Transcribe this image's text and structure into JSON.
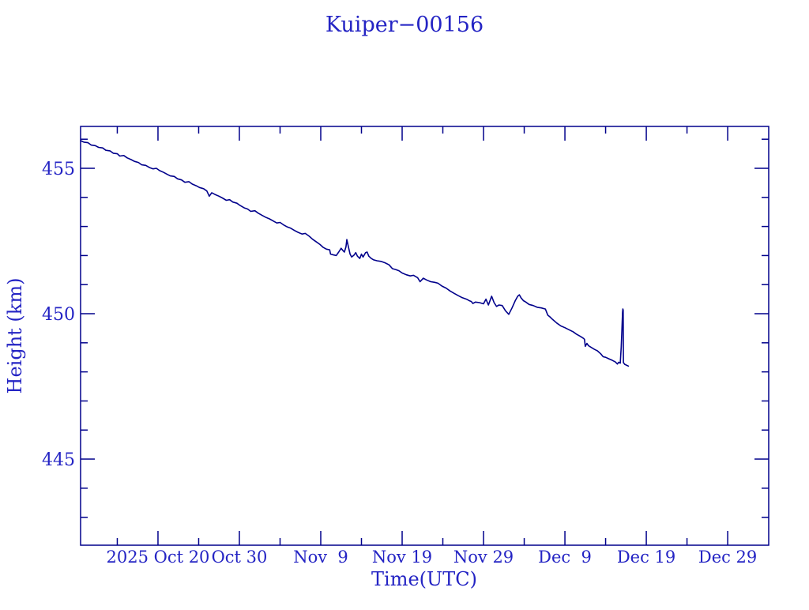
{
  "chart_data": {
    "type": "line",
    "title": "Kuiper−00156",
    "xlabel": "Time(UTC)",
    "ylabel": "Height (km)",
    "colors": {
      "line": "#00008b",
      "frame": "#00008b",
      "text": "#2424c4",
      "background": "#ffffff"
    },
    "x_axis": {
      "unit": "days since 2025 Oct 10 (UTC)",
      "range": [
        0.49,
        85.04
      ],
      "major_ticks": [
        {
          "t": 10,
          "label": "2025 Oct 20"
        },
        {
          "t": 20,
          "label": "Oct 30"
        },
        {
          "t": 30,
          "label": "Nov  9"
        },
        {
          "t": 40,
          "label": "Nov 19"
        },
        {
          "t": 50,
          "label": "Nov 29"
        },
        {
          "t": 60,
          "label": "Dec  9"
        },
        {
          "t": 70,
          "label": "Dec 19"
        },
        {
          "t": 80,
          "label": "Dec 29"
        }
      ],
      "minor_ticks": [
        5,
        15,
        25,
        35,
        45,
        55,
        65,
        75
      ]
    },
    "y_axis": {
      "range": [
        442.04,
        456.44
      ],
      "major_ticks": [
        {
          "v": 445,
          "label": "445"
        },
        {
          "v": 450,
          "label": "450"
        },
        {
          "v": 455,
          "label": "455"
        }
      ],
      "minor_ticks": [
        443,
        444,
        446,
        447,
        448,
        449,
        451,
        452,
        453,
        454,
        456
      ]
    },
    "legend": null,
    "grid": false,
    "series": [
      {
        "name": "height",
        "points": [
          [
            0.5,
            455.95
          ],
          [
            0.9,
            455.9
          ],
          [
            1.4,
            455.88
          ],
          [
            1.8,
            455.8
          ],
          [
            2.3,
            455.78
          ],
          [
            2.7,
            455.72
          ],
          [
            3.2,
            455.7
          ],
          [
            3.6,
            455.62
          ],
          [
            4.1,
            455.6
          ],
          [
            4.5,
            455.52
          ],
          [
            5.0,
            455.5
          ],
          [
            5.3,
            455.42
          ],
          [
            5.8,
            455.44
          ],
          [
            6.2,
            455.36
          ],
          [
            6.7,
            455.3
          ],
          [
            7.1,
            455.24
          ],
          [
            7.6,
            455.2
          ],
          [
            8.0,
            455.12
          ],
          [
            8.5,
            455.1
          ],
          [
            9.0,
            455.02
          ],
          [
            9.4,
            454.98
          ],
          [
            9.8,
            455.0
          ],
          [
            10.2,
            454.92
          ],
          [
            10.7,
            454.86
          ],
          [
            11.1,
            454.8
          ],
          [
            11.5,
            454.74
          ],
          [
            12.0,
            454.72
          ],
          [
            12.4,
            454.64
          ],
          [
            12.9,
            454.6
          ],
          [
            13.3,
            454.52
          ],
          [
            13.8,
            454.54
          ],
          [
            14.2,
            454.46
          ],
          [
            14.7,
            454.4
          ],
          [
            15.1,
            454.34
          ],
          [
            15.6,
            454.3
          ],
          [
            16.0,
            454.22
          ],
          [
            16.3,
            454.04
          ],
          [
            16.6,
            454.16
          ],
          [
            17.0,
            454.1
          ],
          [
            17.5,
            454.04
          ],
          [
            17.9,
            453.98
          ],
          [
            18.4,
            453.9
          ],
          [
            18.8,
            453.92
          ],
          [
            19.2,
            453.84
          ],
          [
            19.7,
            453.8
          ],
          [
            20.1,
            453.72
          ],
          [
            20.6,
            453.64
          ],
          [
            21.0,
            453.6
          ],
          [
            21.4,
            453.52
          ],
          [
            21.9,
            453.54
          ],
          [
            22.3,
            453.46
          ],
          [
            22.8,
            453.38
          ],
          [
            23.2,
            453.32
          ],
          [
            23.7,
            453.26
          ],
          [
            24.1,
            453.2
          ],
          [
            24.6,
            453.12
          ],
          [
            25.0,
            453.14
          ],
          [
            25.4,
            453.06
          ],
          [
            25.9,
            452.98
          ],
          [
            26.3,
            452.94
          ],
          [
            26.8,
            452.86
          ],
          [
            27.2,
            452.8
          ],
          [
            27.7,
            452.74
          ],
          [
            28.1,
            452.76
          ],
          [
            28.6,
            452.66
          ],
          [
            29.0,
            452.56
          ],
          [
            29.4,
            452.48
          ],
          [
            29.9,
            452.38
          ],
          [
            30.3,
            452.28
          ],
          [
            30.7,
            452.22
          ],
          [
            31.1,
            452.2
          ],
          [
            31.2,
            452.05
          ],
          [
            31.6,
            452.02
          ],
          [
            31.9,
            452.0
          ],
          [
            32.2,
            452.12
          ],
          [
            32.5,
            452.25
          ],
          [
            32.7,
            452.18
          ],
          [
            32.9,
            452.12
          ],
          [
            33.1,
            452.3
          ],
          [
            33.2,
            452.55
          ],
          [
            33.4,
            452.3
          ],
          [
            33.6,
            452.05
          ],
          [
            33.8,
            451.95
          ],
          [
            34.1,
            452.02
          ],
          [
            34.3,
            452.1
          ],
          [
            34.5,
            451.98
          ],
          [
            34.8,
            451.9
          ],
          [
            35.0,
            452.05
          ],
          [
            35.2,
            451.95
          ],
          [
            35.5,
            452.1
          ],
          [
            35.7,
            452.12
          ],
          [
            35.9,
            451.98
          ],
          [
            36.2,
            451.9
          ],
          [
            36.5,
            451.85
          ],
          [
            36.9,
            451.82
          ],
          [
            37.4,
            451.8
          ],
          [
            37.9,
            451.75
          ],
          [
            38.4,
            451.68
          ],
          [
            38.8,
            451.55
          ],
          [
            39.2,
            451.52
          ],
          [
            39.6,
            451.48
          ],
          [
            40.0,
            451.4
          ],
          [
            40.5,
            451.34
          ],
          [
            41.0,
            451.3
          ],
          [
            41.4,
            451.32
          ],
          [
            41.9,
            451.24
          ],
          [
            42.2,
            451.1
          ],
          [
            42.6,
            451.22
          ],
          [
            43.0,
            451.16
          ],
          [
            43.5,
            451.1
          ],
          [
            44.0,
            451.08
          ],
          [
            44.4,
            451.05
          ],
          [
            44.9,
            450.95
          ],
          [
            45.4,
            450.88
          ],
          [
            45.9,
            450.78
          ],
          [
            46.4,
            450.7
          ],
          [
            46.9,
            450.62
          ],
          [
            47.4,
            450.55
          ],
          [
            47.9,
            450.5
          ],
          [
            48.3,
            450.44
          ],
          [
            48.5,
            450.42
          ],
          [
            48.7,
            450.35
          ],
          [
            49.0,
            450.4
          ],
          [
            49.5,
            450.38
          ],
          [
            50.0,
            450.34
          ],
          [
            50.3,
            450.5
          ],
          [
            50.6,
            450.3
          ],
          [
            51.0,
            450.6
          ],
          [
            51.3,
            450.38
          ],
          [
            51.6,
            450.25
          ],
          [
            51.9,
            450.3
          ],
          [
            52.3,
            450.28
          ],
          [
            52.7,
            450.1
          ],
          [
            53.1,
            449.98
          ],
          [
            53.5,
            450.2
          ],
          [
            53.9,
            450.45
          ],
          [
            54.2,
            450.6
          ],
          [
            54.4,
            450.65
          ],
          [
            54.6,
            450.55
          ],
          [
            54.9,
            450.45
          ],
          [
            55.2,
            450.4
          ],
          [
            55.6,
            450.32
          ],
          [
            56.1,
            450.28
          ],
          [
            56.6,
            450.22
          ],
          [
            57.1,
            450.2
          ],
          [
            57.6,
            450.16
          ],
          [
            57.9,
            449.95
          ],
          [
            58.2,
            449.88
          ],
          [
            58.5,
            449.8
          ],
          [
            59.0,
            449.68
          ],
          [
            59.5,
            449.58
          ],
          [
            60.0,
            449.52
          ],
          [
            60.5,
            449.45
          ],
          [
            61.0,
            449.38
          ],
          [
            61.4,
            449.3
          ],
          [
            61.9,
            449.22
          ],
          [
            62.3,
            449.15
          ],
          [
            62.4,
            449.12
          ],
          [
            62.5,
            448.88
          ],
          [
            62.7,
            448.98
          ],
          [
            62.9,
            448.9
          ],
          [
            63.2,
            448.85
          ],
          [
            63.6,
            448.78
          ],
          [
            64.0,
            448.72
          ],
          [
            64.4,
            448.62
          ],
          [
            64.7,
            448.52
          ],
          [
            65.0,
            448.5
          ],
          [
            65.4,
            448.45
          ],
          [
            65.8,
            448.4
          ],
          [
            66.2,
            448.34
          ],
          [
            66.45,
            448.27
          ],
          [
            66.6,
            448.33
          ],
          [
            66.8,
            448.3
          ],
          [
            66.92,
            448.85
          ],
          [
            67.0,
            449.45
          ],
          [
            67.08,
            450.05
          ],
          [
            67.12,
            450.16
          ],
          [
            67.16,
            450.12
          ],
          [
            67.19,
            448.32
          ],
          [
            67.35,
            448.26
          ],
          [
            67.8,
            448.2
          ]
        ]
      }
    ]
  }
}
